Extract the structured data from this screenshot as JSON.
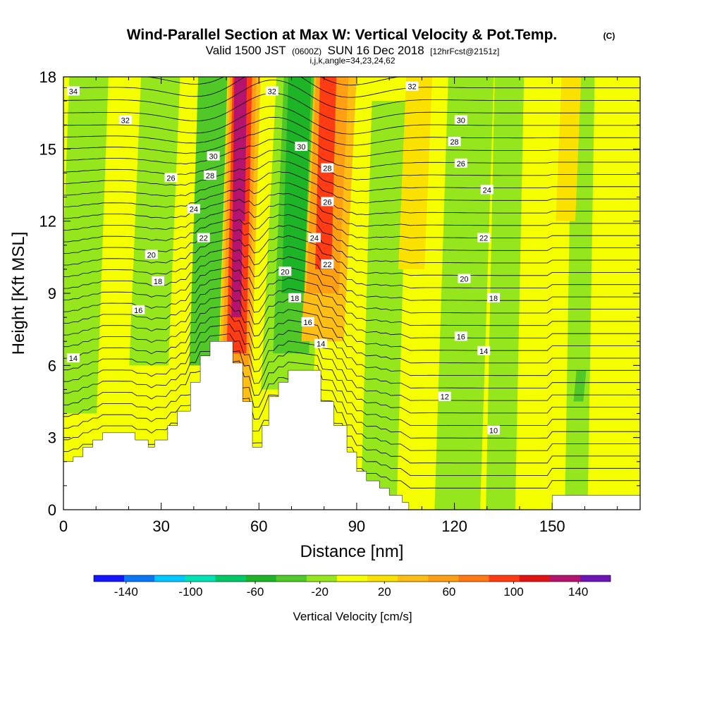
{
  "title": {
    "main": "Wind-Parallel Section at Max W: Vertical Velocity & Pot.Temp.",
    "copyright": "(C)",
    "valid_prefix": "Valid 1500 JST",
    "valid_utc": "(0600Z)",
    "valid_date": "SUN 16 Dec 2018",
    "forecast": "[12hrFcst@2151z]",
    "indices": "i,j,k,angle=34,23,24,62"
  },
  "chart_data": {
    "type": "heatmap",
    "xlabel": "Distance [nm]",
    "ylabel": "Height [Kft MSL]",
    "xlim": [
      0,
      177
    ],
    "ylim": [
      0,
      18
    ],
    "x_ticks": [
      0,
      30,
      60,
      90,
      120,
      150
    ],
    "y_ticks": [
      0,
      3,
      6,
      9,
      12,
      15,
      18
    ],
    "variable": "Vertical Velocity",
    "contour_variable": "Pot.Temp.",
    "grid": false,
    "terrain": [
      [
        0,
        2
      ],
      [
        3,
        2.2
      ],
      [
        6,
        2.6
      ],
      [
        9,
        2.9
      ],
      [
        12,
        3.2
      ],
      [
        18,
        3.2
      ],
      [
        22,
        2.9
      ],
      [
        26,
        2.6
      ],
      [
        28,
        2.9
      ],
      [
        32,
        3.5
      ],
      [
        35,
        4.1
      ],
      [
        39,
        5.3
      ],
      [
        42,
        6.4
      ],
      [
        45,
        7.0
      ],
      [
        51,
        7.0
      ],
      [
        52,
        6.1
      ],
      [
        55,
        4.5
      ],
      [
        58,
        2.6
      ],
      [
        61,
        3.5
      ],
      [
        63,
        4.7
      ],
      [
        66,
        5.3
      ],
      [
        69,
        5.8
      ],
      [
        76,
        5.8
      ],
      [
        79,
        4.5
      ],
      [
        83,
        3.5
      ],
      [
        87,
        2.4
      ],
      [
        90,
        1.6
      ],
      [
        93,
        1.2
      ],
      [
        97,
        0.9
      ],
      [
        100,
        0.6
      ],
      [
        104,
        0.3
      ],
      [
        106,
        0
      ],
      [
        150,
        0
      ],
      [
        150,
        0.6
      ],
      [
        177,
        0.6
      ]
    ],
    "vertical_velocity_regions": [
      {
        "x": [
          52,
          55
        ],
        "yMin": 8,
        "yMax": 18,
        "w": 140
      },
      {
        "x": [
          54,
          56
        ],
        "yMin": 12,
        "yMax": 18,
        "w": 150
      },
      {
        "x": [
          51,
          57
        ],
        "yMin": 6.5,
        "yMax": 18,
        "w": 100
      },
      {
        "x": [
          50,
          58
        ],
        "yMin": 6,
        "yMax": 18,
        "w": 60
      },
      {
        "x": [
          49,
          59
        ],
        "yMin": 4.5,
        "yMax": 18,
        "w": 40
      },
      {
        "x": [
          68,
          75
        ],
        "yMin": 9,
        "yMax": 18,
        "w": -60
      },
      {
        "x": [
          66,
          77
        ],
        "yMin": 6.5,
        "yMax": 18,
        "w": -40
      },
      {
        "x": [
          63,
          79
        ],
        "yMin": 5,
        "yMax": 18,
        "w": -20
      },
      {
        "x": [
          40,
          49
        ],
        "yMin": 6,
        "yMax": 18,
        "w": -30
      },
      {
        "x": [
          78,
          83
        ],
        "yMin": 10,
        "yMax": 18,
        "w": 100
      },
      {
        "x": [
          76,
          86
        ],
        "yMin": 9,
        "yMax": 18,
        "w": 60
      },
      {
        "x": [
          75,
          88
        ],
        "yMin": 7,
        "yMax": 18,
        "w": 40
      },
      {
        "x": [
          93,
          104
        ],
        "yMin": 0.5,
        "yMax": 17,
        "w": -10
      },
      {
        "x": [
          116,
          130
        ],
        "yMin": 0,
        "yMax": 18,
        "w": -10
      },
      {
        "x": [
          131,
          140
        ],
        "yMin": 0,
        "yMax": 18,
        "w": -10
      },
      {
        "x": [
          155,
          162
        ],
        "yMin": 0.5,
        "yMax": 18,
        "w": -10
      },
      {
        "x": [
          104,
          112
        ],
        "yMin": 10,
        "yMax": 18,
        "w": 30
      },
      {
        "x": [
          152,
          158
        ],
        "yMin": 12,
        "yMax": 18,
        "w": 30
      },
      {
        "x": [
          0,
          12
        ],
        "yMin": 4,
        "yMax": 18,
        "w": -10
      },
      {
        "x": [
          22,
          34
        ],
        "yMin": 6,
        "yMax": 18,
        "w": -10
      },
      {
        "x": [
          157,
          160
        ],
        "yMin": 4.5,
        "yMax": 5.8,
        "w": -30
      }
    ],
    "pot_temp_levels": [
      10,
      12,
      14,
      16,
      18,
      20,
      22,
      24,
      26,
      28,
      30,
      32,
      34
    ],
    "pot_temp_labels": [
      {
        "x": 3,
        "y": 17.4,
        "text": "34"
      },
      {
        "x": 19,
        "y": 16.2,
        "text": "32"
      },
      {
        "x": 64,
        "y": 17.4,
        "text": "32"
      },
      {
        "x": 107,
        "y": 17.6,
        "text": "32"
      },
      {
        "x": 122,
        "y": 16.2,
        "text": "30"
      },
      {
        "x": 46,
        "y": 14.7,
        "text": "30"
      },
      {
        "x": 73,
        "y": 15.1,
        "text": "30"
      },
      {
        "x": 120,
        "y": 15.3,
        "text": "28"
      },
      {
        "x": 45,
        "y": 13.9,
        "text": "28"
      },
      {
        "x": 81,
        "y": 14.2,
        "text": "28"
      },
      {
        "x": 33,
        "y": 13.8,
        "text": "26"
      },
      {
        "x": 81,
        "y": 12.8,
        "text": "26"
      },
      {
        "x": 122,
        "y": 14.4,
        "text": "26"
      },
      {
        "x": 40,
        "y": 12.5,
        "text": "24"
      },
      {
        "x": 77,
        "y": 11.3,
        "text": "24"
      },
      {
        "x": 130,
        "y": 13.3,
        "text": "24"
      },
      {
        "x": 43,
        "y": 11.3,
        "text": "22"
      },
      {
        "x": 81,
        "y": 10.2,
        "text": "22"
      },
      {
        "x": 129,
        "y": 11.3,
        "text": "22"
      },
      {
        "x": 27,
        "y": 10.6,
        "text": "20"
      },
      {
        "x": 68,
        "y": 9.9,
        "text": "20"
      },
      {
        "x": 123,
        "y": 9.6,
        "text": "20"
      },
      {
        "x": 29,
        "y": 9.5,
        "text": "18"
      },
      {
        "x": 71,
        "y": 8.8,
        "text": "18"
      },
      {
        "x": 132,
        "y": 8.8,
        "text": "18"
      },
      {
        "x": 23,
        "y": 8.3,
        "text": "16"
      },
      {
        "x": 75,
        "y": 7.8,
        "text": "16"
      },
      {
        "x": 122,
        "y": 7.2,
        "text": "16"
      },
      {
        "x": 3,
        "y": 6.3,
        "text": "14"
      },
      {
        "x": 79,
        "y": 6.9,
        "text": "14"
      },
      {
        "x": 129,
        "y": 6.6,
        "text": "14"
      },
      {
        "x": 117,
        "y": 4.7,
        "text": "12"
      },
      {
        "x": 132,
        "y": 3.3,
        "text": "10"
      }
    ]
  },
  "colorbar": {
    "title": "Vertical Velocity [cm/s]",
    "bins": [
      -160,
      -140,
      -120,
      -100,
      -80,
      -60,
      -40,
      -20,
      0,
      20,
      40,
      60,
      80,
      100,
      120,
      140,
      160
    ],
    "colors": [
      "#1414ff",
      "#0a78f5",
      "#00c8ff",
      "#00e1b4",
      "#00c864",
      "#1eb428",
      "#50c828",
      "#96e61e",
      "#f5ff00",
      "#fae100",
      "#ffbe14",
      "#ffa014",
      "#ff7814",
      "#ff3c14",
      "#e11414",
      "#b4146e",
      "#6e14b4"
    ],
    "tick_values": [
      -140,
      -100,
      -60,
      -20,
      20,
      60,
      100,
      140
    ]
  }
}
